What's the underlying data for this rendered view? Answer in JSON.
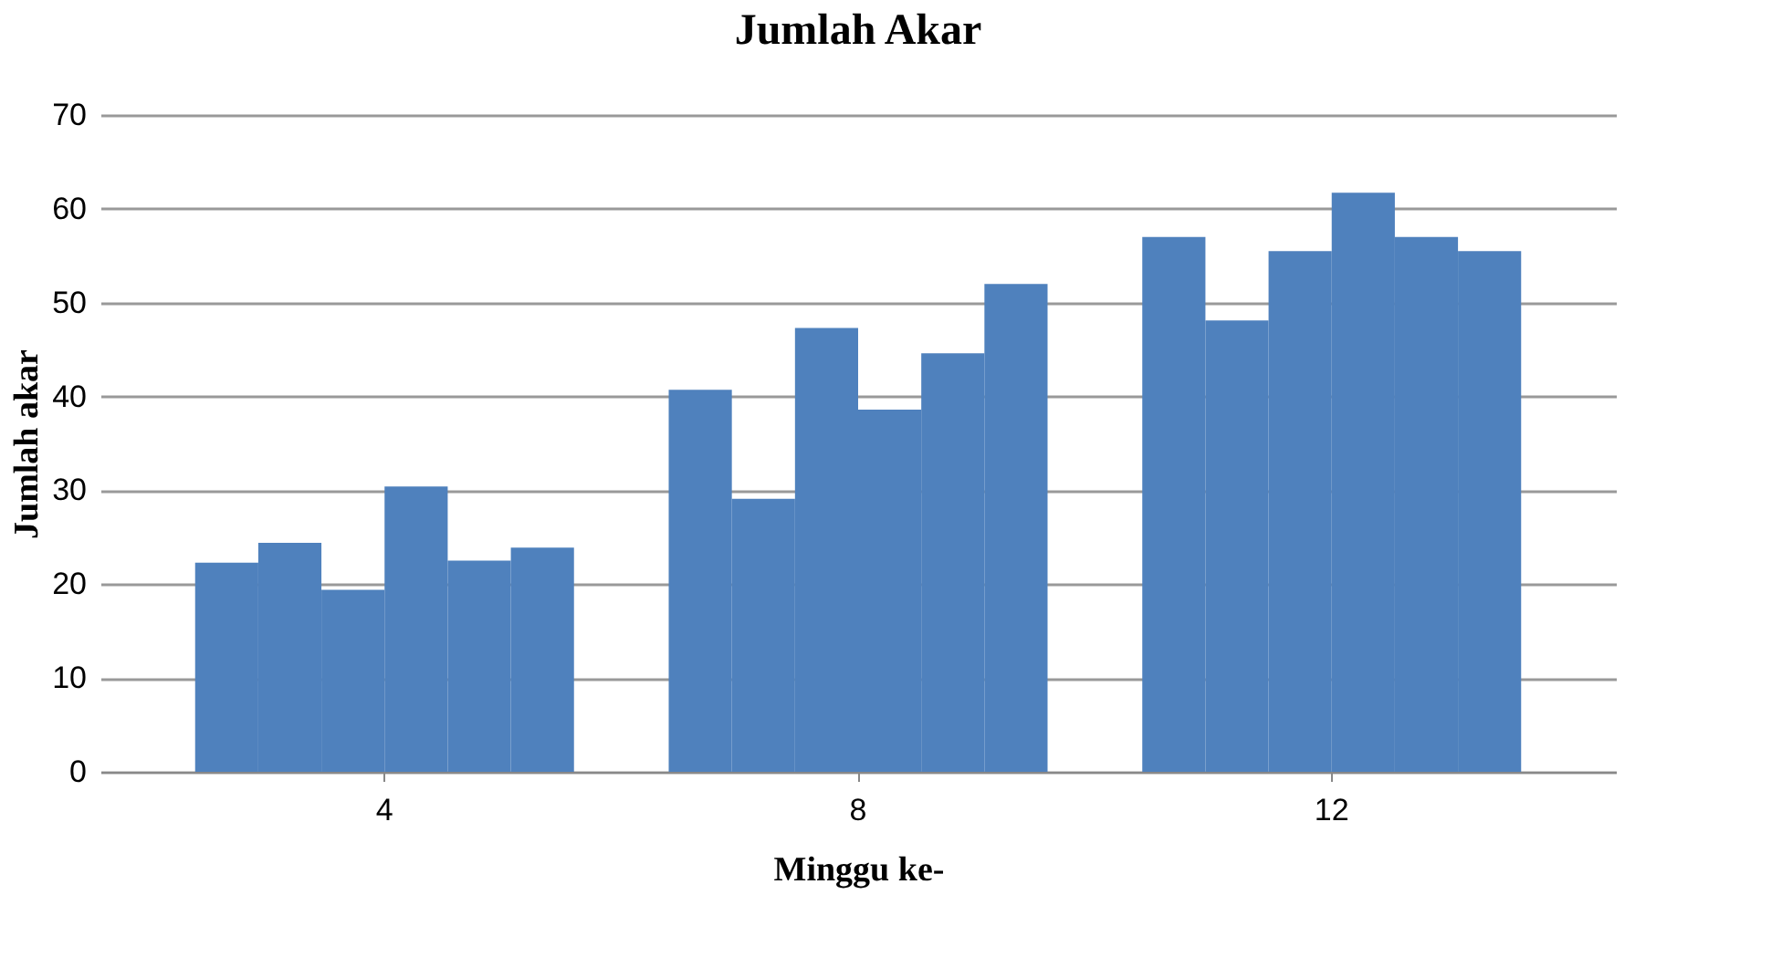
{
  "chart_data": {
    "type": "bar",
    "title": "Jumlah Akar",
    "xlabel": "Minggu ke-",
    "ylabel": "Jumlah akar",
    "categories": [
      "4",
      "8",
      "12"
    ],
    "series": [
      {
        "color": "#4f81bd",
        "values": [
          22.3,
          40.7,
          57.0
        ]
      },
      {
        "color": "#4f81bd",
        "values": [
          24.4,
          29.1,
          48.1
        ]
      },
      {
        "color": "#4f81bd",
        "values": [
          19.4,
          47.3,
          55.5
        ]
      },
      {
        "color": "#4f81bd",
        "values": [
          30.4,
          38.6,
          61.7
        ]
      },
      {
        "color": "#4f81bd",
        "values": [
          22.5,
          44.6,
          57.0
        ]
      },
      {
        "color": "#4f81bd",
        "values": [
          23.9,
          52.0,
          55.5
        ]
      }
    ],
    "ylim": [
      0,
      70
    ],
    "yticks": [
      0,
      10,
      20,
      30,
      40,
      50,
      60,
      70
    ],
    "grid": "y",
    "legend": false
  }
}
